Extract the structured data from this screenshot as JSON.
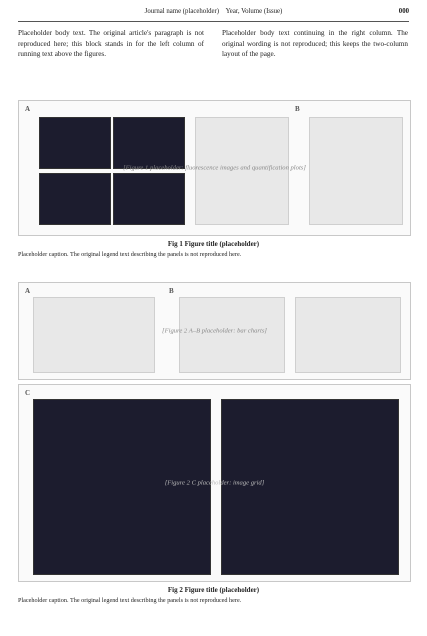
{
  "running_head": {
    "left": "Journal name (placeholder)",
    "right": "Year, Volume (Issue)",
    "page": "000"
  },
  "body": {
    "left_col": [
      "Placeholder body text. The original article's paragraph is not reproduced here; this block stands in for the left column of running text above the figures."
    ],
    "right_col": [
      "Placeholder body text continuing in the right column. The original wording is not reproduced; this keeps the two-column layout of the page."
    ]
  },
  "figure1": {
    "panel_a": "A",
    "panel_b": "B",
    "note": "[Figure 1 placeholder: fluorescence images and quantification plots]",
    "caption_title": "Fig 1  Figure title (placeholder)",
    "caption_text": "Placeholder caption. The original legend text describing the panels is not reproduced here."
  },
  "figure2": {
    "panel_a": "A",
    "panel_b": "B",
    "panel_c": "C",
    "note_ab": "[Figure 2 A–B placeholder: bar charts]",
    "note_c": "[Figure 2 C placeholder: image grid]",
    "caption_title": "Fig 2  Figure title (placeholder)",
    "caption_text": "Placeholder caption. The original legend text describing the panels is not reproduced here."
  }
}
